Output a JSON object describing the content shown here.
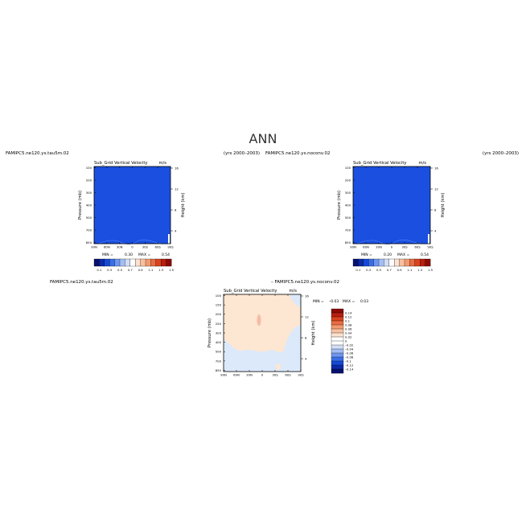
{
  "figure": {
    "title": "ANN"
  },
  "chart_data": [
    {
      "type": "heatmap",
      "case_label": "FAMIPC5.ne120.ys.tau5m.02",
      "title": "Sub_Grid Vertical Velocity",
      "units": "m/s",
      "years": "(yrs 2000–2003)",
      "ylabel": "Pressure (mb)",
      "ylabel_right": "Height (km)",
      "x_ticks": [
        "90N",
        "60N",
        "30N",
        "0",
        "30S",
        "60S",
        "90S"
      ],
      "y_ticks": [
        "100",
        "200",
        "300",
        "400",
        "500",
        "700",
        "850"
      ],
      "y_ticks_right": [
        "16",
        "12",
        "8",
        "4"
      ],
      "min_label": "MIN =",
      "min_value": "0.30",
      "max_label": "MAX =",
      "max_value": "0.54",
      "colorbar_labels": [
        "0.1",
        "0.3",
        "0.5",
        "0.7",
        "0.9",
        "1.1",
        "1.3",
        "1.5"
      ],
      "field_color": "#1a4fe0",
      "contour_color": "#4d7df0"
    },
    {
      "type": "heatmap",
      "case_label": "FAMIPC5.ne120.ys.noconv.02",
      "title": "Sub_Grid Vertical Velocity",
      "units": "m/s",
      "years": "(yrs 2000–2003)",
      "ylabel": "Pressure (mb)",
      "ylabel_right": "Height (km)",
      "x_ticks": [
        "90N",
        "60N",
        "30N",
        "0",
        "30S",
        "60S",
        "90S"
      ],
      "y_ticks": [
        "100",
        "200",
        "300",
        "400",
        "500",
        "700",
        "850"
      ],
      "y_ticks_right": [
        "16",
        "12",
        "8",
        "4"
      ],
      "min_label": "MIN =",
      "min_value": "0.20",
      "max_label": "MAX =",
      "max_value": "0.54",
      "colorbar_labels": [
        "0.1",
        "0.3",
        "0.5",
        "0.7",
        "0.9",
        "1.1",
        "1.3",
        "1.5"
      ],
      "field_color": "#1a4fe0",
      "contour_color": "#4d7df0"
    },
    {
      "type": "heatmap",
      "case_label": "FAMIPC5.ne120.ys.tau5m.02",
      "diff_label": "– FAMIPC5.ne120.ys.noconv.02",
      "title": "Sub_Grid Vertical Velocity",
      "units": "m/s",
      "ylabel": "Pressure (mb)",
      "ylabel_right": "Height (km)",
      "x_ticks": [
        "90N",
        "60N",
        "30N",
        "0",
        "30S",
        "60S",
        "90S"
      ],
      "y_ticks": [
        "100",
        "150",
        "200",
        "250",
        "300",
        "400",
        "500",
        "700",
        "850"
      ],
      "y_ticks_right": [
        "16",
        "12",
        "8",
        "4"
      ],
      "min_label": "MIN =",
      "min_value": "–0.03",
      "max_label": "MAX =",
      "max_value": "0.03",
      "colorbar_labels": [
        "0.14",
        "0.12",
        "0.1",
        "0.08",
        "0.06",
        "0.04",
        "0.02",
        "0",
        "–0.02",
        "–0.04",
        "–0.06",
        "–0.08",
        "–0.1",
        "–0.12",
        "–0.14"
      ],
      "field_color": "#fde6d2",
      "low_color": "#dbe9fb",
      "spot_color": "#f6bca3"
    }
  ],
  "palettes": {
    "abs": [
      "#08106f",
      "#0c2aa8",
      "#1549d6",
      "#3a6ee8",
      "#6e96ef",
      "#a3bef4",
      "#d2ddf6",
      "#ffffff",
      "#fbe1cf",
      "#f8c09f",
      "#f39a70",
      "#ea6c43",
      "#d8431f",
      "#b81e0e",
      "#8c0a05"
    ],
    "diff": [
      "#8c0a05",
      "#b81e0e",
      "#d8431f",
      "#ea6c43",
      "#f39a70",
      "#f8c09f",
      "#fbe1cf",
      "#ffffff",
      "#ffffff",
      "#d2ddf6",
      "#a3bef4",
      "#6e96ef",
      "#3a6ee8",
      "#1549d6",
      "#0c2aa8",
      "#08106f"
    ]
  }
}
